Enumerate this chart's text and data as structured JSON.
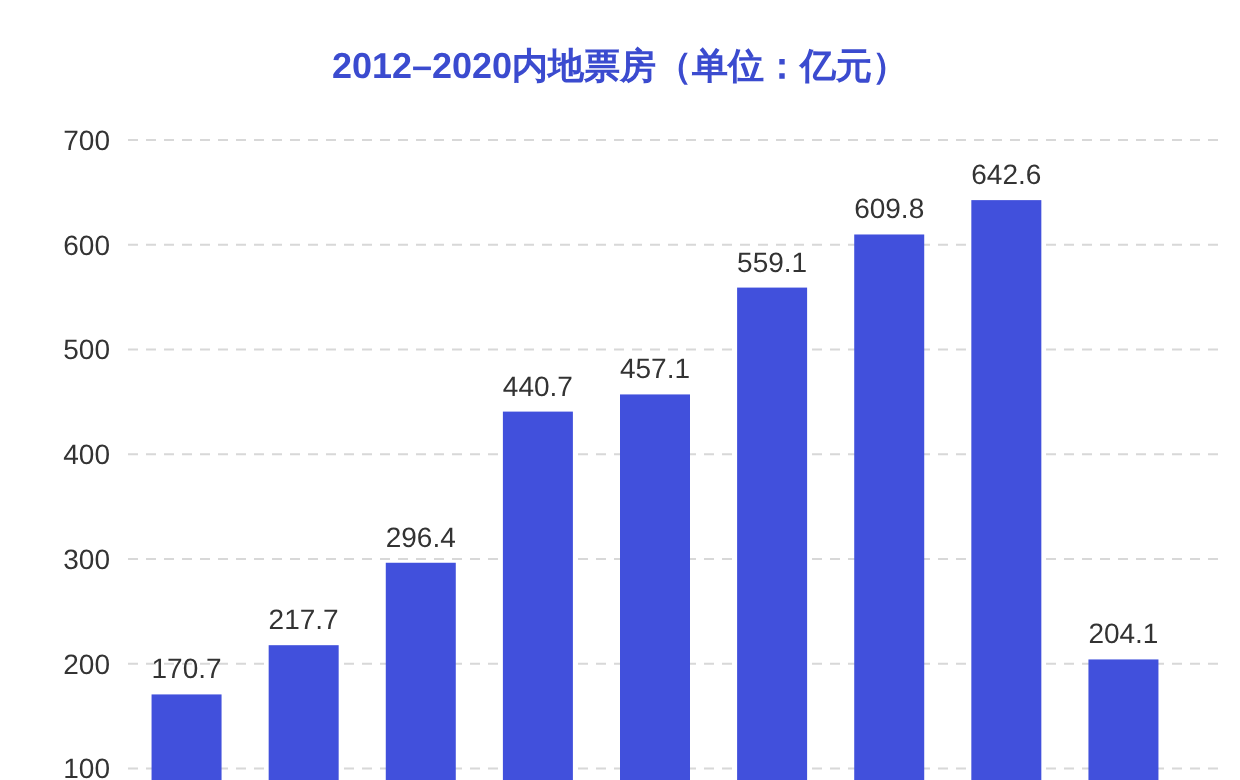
{
  "chart_data": {
    "type": "bar",
    "title": "2012–2020内地票房（单位：亿元）",
    "categories": [
      null,
      null,
      null,
      null,
      null,
      null,
      null,
      null,
      null
    ],
    "values": [
      170.7,
      217.7,
      296.4,
      440.7,
      457.1,
      559.1,
      609.8,
      642.6,
      204.1
    ],
    "color": "#4150dc",
    "ylim": [
      89,
      700
    ],
    "yticks": [
      100,
      200,
      300,
      400,
      500,
      600,
      700
    ],
    "grid": "y",
    "data_labels": true
  }
}
